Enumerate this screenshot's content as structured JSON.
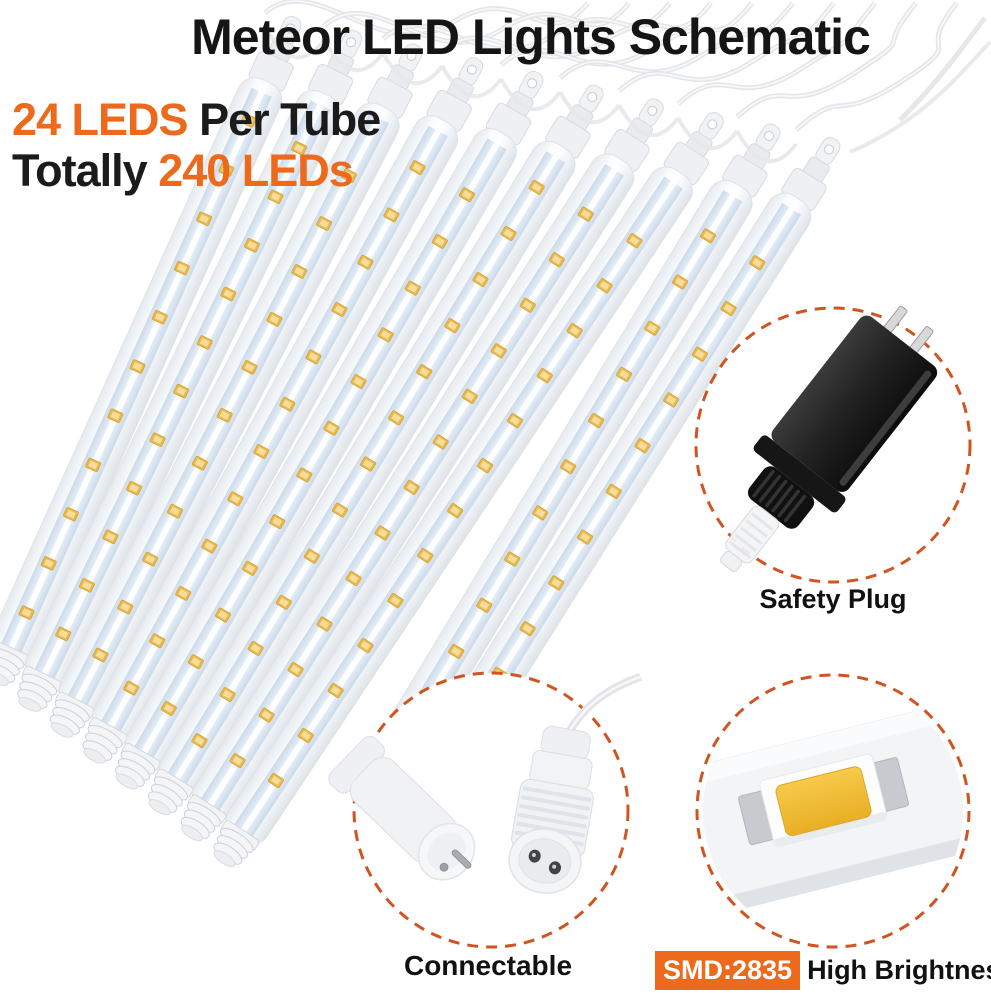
{
  "header": {
    "title": "Meteor LED Lights Schematic"
  },
  "subtitle": {
    "line1_highlight": "24 LEDS",
    "line1_rest": " Per Tube",
    "line2_prefix": "Totally ",
    "line2_highlight": "240 LEDs"
  },
  "tubes": {
    "tube_count": 10,
    "leds_per_tube": 24,
    "total_leds": 240
  },
  "insets": [
    {
      "id": "safety_plug",
      "label": "Safety Plug",
      "icon": "power-adapter-icon"
    },
    {
      "id": "connectable",
      "label": "Connectable",
      "icon": "connector-plugs-icon"
    },
    {
      "id": "smd_chip",
      "badge": "SMD:2835",
      "label": "High Brightness",
      "icon": "smd-led-chip-icon"
    }
  ],
  "colors": {
    "accent_orange": "#ed6a1c",
    "dash_circle_orange": "#cf5420",
    "text_black": "#151515",
    "led_gold": "#e9b94e",
    "led_gold_light": "#f7dd9b",
    "tube_edge": "#dde2e8",
    "strip_blue": "#c9d8e8",
    "plug_black": "#1c1c1c",
    "smd_phosphor": "#f2bf35"
  }
}
